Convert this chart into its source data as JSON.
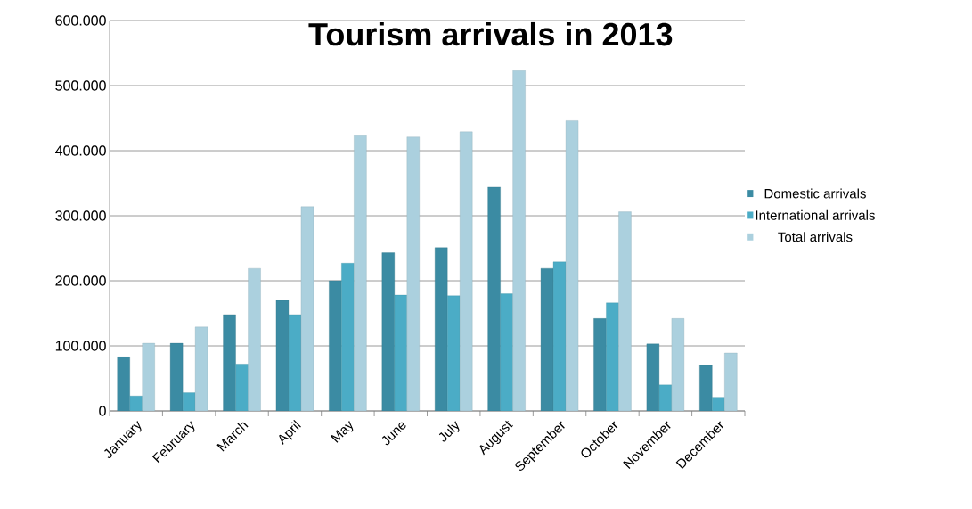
{
  "chart_data": {
    "type": "bar",
    "title": "Tourism arrivals in 2013",
    "categories": [
      "January",
      "February",
      "March",
      "April",
      "May",
      "June",
      "July",
      "August",
      "September",
      "October",
      "November",
      "December"
    ],
    "series": [
      {
        "name": "Domestic arrivals",
        "color": "#3b8ba3",
        "values": [
          83000,
          104000,
          148000,
          170000,
          200000,
          243000,
          251000,
          344000,
          219000,
          142000,
          103000,
          70000
        ]
      },
      {
        "name": "International arrivals",
        "color": "#4bacc6",
        "values": [
          23000,
          28000,
          72000,
          148000,
          227000,
          178000,
          177000,
          180000,
          229000,
          166000,
          40000,
          21000
        ]
      },
      {
        "name": "Total arrivals",
        "color": "#abd0de",
        "values": [
          104000,
          129000,
          219000,
          314000,
          423000,
          421000,
          429000,
          523000,
          446000,
          306000,
          142000,
          89000
        ]
      }
    ],
    "ylim": [
      0,
      600000
    ],
    "yticks": [
      {
        "value": 0,
        "label": "0"
      },
      {
        "value": 100000,
        "label": "100.000"
      },
      {
        "value": 200000,
        "label": "200.000"
      },
      {
        "value": 300000,
        "label": "300.000"
      },
      {
        "value": 400000,
        "label": "400.000"
      },
      {
        "value": 500000,
        "label": "500.000"
      },
      {
        "value": 600000,
        "label": "600.000"
      }
    ],
    "grid": "y",
    "legend": "right"
  }
}
